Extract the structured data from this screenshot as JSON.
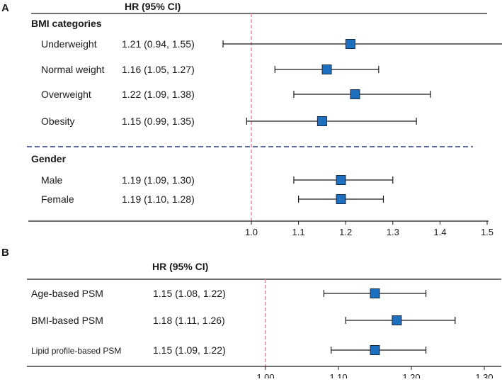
{
  "chart_data": [
    {
      "type": "forest",
      "panel": "A",
      "header": "HR (95% CI)",
      "reference_line": 1.0,
      "xlim": [
        0.95,
        1.5
      ],
      "ticks": [
        1.0,
        1.1,
        1.2,
        1.3,
        1.4,
        1.5
      ],
      "tick_labels": [
        "1.0",
        "1.1",
        "1.2",
        "1.3",
        "1.4",
        "1.5"
      ],
      "groups": [
        {
          "title": "BMI categories",
          "rows": [
            {
              "label": "Underweight",
              "text": "1.21 (0.94, 1.55)",
              "hr": 1.21,
              "lo": 0.94,
              "hi": 1.55
            },
            {
              "label": "Normal weight",
              "text": "1.16 (1.05, 1.27)",
              "hr": 1.16,
              "lo": 1.05,
              "hi": 1.27
            },
            {
              "label": "Overweight",
              "text": "1.22 (1.09, 1.38)",
              "hr": 1.22,
              "lo": 1.09,
              "hi": 1.38
            },
            {
              "label": "Obesity",
              "text": "1.15 (0.99, 1.35)",
              "hr": 1.15,
              "lo": 0.99,
              "hi": 1.35
            }
          ]
        },
        {
          "title": "Gender",
          "rows": [
            {
              "label": "Male",
              "text": "1.19 (1.09, 1.30)",
              "hr": 1.19,
              "lo": 1.09,
              "hi": 1.3
            },
            {
              "label": "Female",
              "text": "1.19 (1.10, 1.28)",
              "hr": 1.19,
              "lo": 1.1,
              "hi": 1.28
            }
          ]
        }
      ]
    },
    {
      "type": "forest",
      "panel": "B",
      "header": "HR (95% CI)",
      "reference_line": 1.0,
      "xlim": [
        0.95,
        1.3
      ],
      "ticks": [
        1.0,
        1.1,
        1.2,
        1.3
      ],
      "tick_labels": [
        "1.00",
        "1.10",
        "1.20",
        "1.30"
      ],
      "groups": [
        {
          "title": "",
          "rows": [
            {
              "label": "Age-based PSM",
              "text": "1.15 (1.08, 1.22)",
              "hr": 1.15,
              "lo": 1.08,
              "hi": 1.22
            },
            {
              "label": "BMI-based PSM",
              "text": "1.18 (1.11, 1.26)",
              "hr": 1.18,
              "lo": 1.11,
              "hi": 1.26
            },
            {
              "label": "Lipid profile-based PSM",
              "text": "1.15 (1.09, 1.22)",
              "hr": 1.15,
              "lo": 1.09,
              "hi": 1.22
            }
          ]
        }
      ]
    }
  ],
  "colors": {
    "marker_fill": "#1f6fbf",
    "marker_stroke": "#1a2a4a",
    "ref_line": "#e08a98",
    "divider": "#2a3a7a",
    "axis": "#1a1a1a"
  }
}
